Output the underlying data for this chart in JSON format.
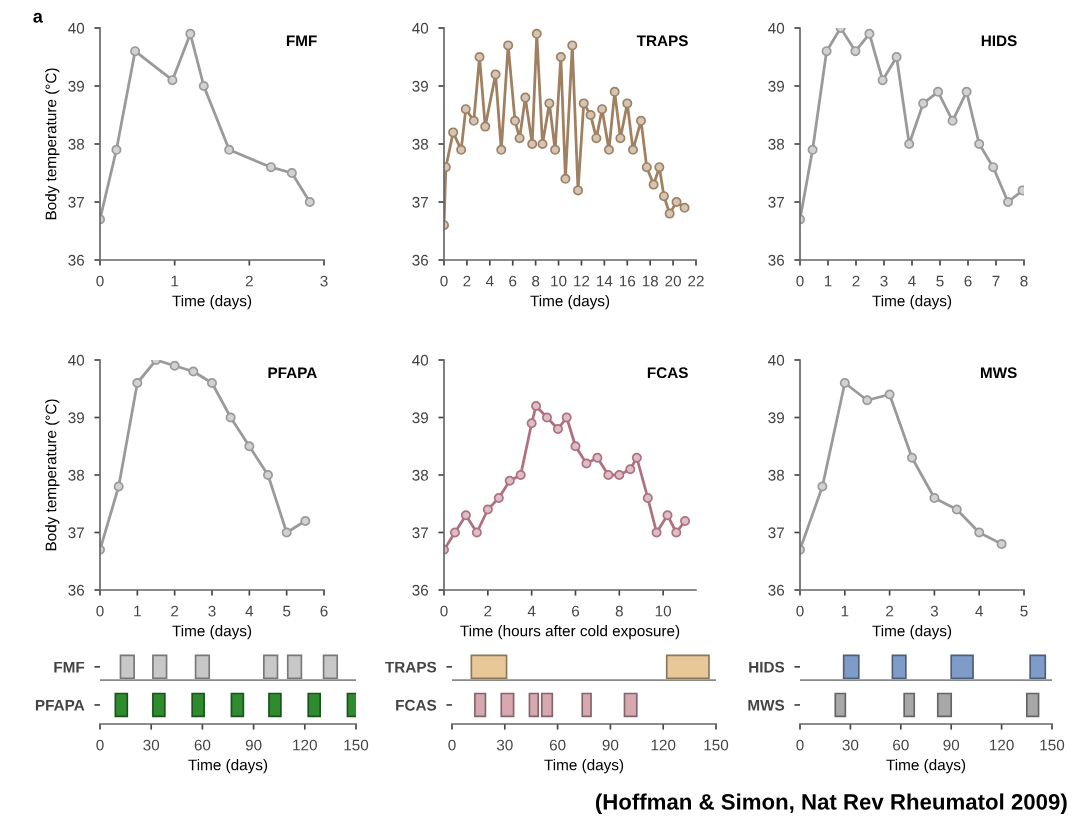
{
  "chart_data": [
    {
      "type": "line",
      "title": "FMF",
      "ylabel": "Body temperature (°C)",
      "xlabel": "Time (days)",
      "annotations": [
        "a"
      ],
      "marker": "circle",
      "line_style": "solid",
      "xlim": [
        0,
        3
      ],
      "xticks": [
        0,
        1,
        2,
        3
      ],
      "ylim": [
        36,
        40
      ],
      "yticks": [
        36,
        37,
        38,
        39,
        40
      ],
      "series": [
        {
          "color": "#9a9a9a",
          "x": [
            0,
            0.22,
            0.47,
            0.97,
            1.21,
            1.39,
            1.73,
            2.29,
            2.57,
            2.81
          ],
          "values": [
            36.7,
            37.9,
            39.6,
            39.1,
            39.9,
            39.0,
            37.9,
            37.6,
            37.5,
            37.0
          ]
        }
      ]
    },
    {
      "type": "line",
      "title": "TRAPS",
      "xlabel": "Time (days)",
      "marker": "circle",
      "line_style": "solid",
      "xlim": [
        0,
        22
      ],
      "xticks": [
        0,
        2,
        4,
        6,
        8,
        10,
        12,
        14,
        16,
        18,
        20,
        22
      ],
      "ylim": [
        36,
        40
      ],
      "yticks": [
        36,
        37,
        38,
        39,
        40
      ],
      "series": [
        {
          "color": "#a08060",
          "x": [
            0,
            0.16,
            0.8,
            1.5,
            1.9,
            2.6,
            3.1,
            3.6,
            4.5,
            5.0,
            5.6,
            6.2,
            6.6,
            7.1,
            7.7,
            8.1,
            8.6,
            9.2,
            9.7,
            10.2,
            10.6,
            11.2,
            11.7,
            12.2,
            12.8,
            13.3,
            13.8,
            14.4,
            14.9,
            15.4,
            16.0,
            16.5,
            17.2,
            17.7,
            18.3,
            18.8,
            19.2,
            19.7,
            20.3,
            21.0
          ],
          "values": [
            36.6,
            37.6,
            38.2,
            37.9,
            38.6,
            38.4,
            39.5,
            38.3,
            39.2,
            37.9,
            39.7,
            38.4,
            38.1,
            38.8,
            38.0,
            39.9,
            38.0,
            38.7,
            37.9,
            39.5,
            37.4,
            39.7,
            37.2,
            38.7,
            38.5,
            38.1,
            38.6,
            37.9,
            38.9,
            38.1,
            38.7,
            37.9,
            38.4,
            37.6,
            37.3,
            37.6,
            37.1,
            36.8,
            37.0,
            36.9
          ]
        }
      ]
    },
    {
      "type": "line",
      "title": "HIDS",
      "xlabel": "Time (days)",
      "marker": "circle",
      "line_style": "solid",
      "xlim": [
        0,
        8
      ],
      "xticks": [
        0,
        1,
        2,
        3,
        4,
        5,
        6,
        7,
        8
      ],
      "ylim": [
        36,
        40
      ],
      "yticks": [
        36,
        37,
        38,
        39,
        40
      ],
      "series": [
        {
          "color": "#9a9a9a",
          "x": [
            0,
            0.45,
            0.95,
            1.45,
            1.98,
            2.48,
            2.95,
            3.45,
            3.9,
            4.4,
            4.93,
            5.45,
            5.95,
            6.4,
            6.9,
            7.43,
            7.95
          ],
          "values": [
            36.7,
            37.9,
            39.6,
            40.0,
            39.6,
            39.9,
            39.1,
            39.5,
            38.0,
            38.7,
            38.9,
            38.4,
            38.9,
            38.0,
            37.6,
            37.0,
            37.2
          ]
        }
      ]
    },
    {
      "type": "line",
      "title": "PFAPA",
      "ylabel": "Body temperature (°C)",
      "xlabel": "Time (days)",
      "marker": "circle",
      "line_style": "solid",
      "xlim": [
        0,
        6
      ],
      "xticks": [
        0,
        1,
        2,
        3,
        4,
        5,
        6
      ],
      "ylim": [
        36,
        40
      ],
      "yticks": [
        36,
        37,
        38,
        39,
        40
      ],
      "series": [
        {
          "color": "#9a9a9a",
          "x": [
            0,
            0.5,
            1,
            1.5,
            2,
            2.5,
            3,
            3.5,
            4,
            4.5,
            5,
            5.5
          ],
          "values": [
            36.7,
            37.8,
            39.6,
            40.0,
            39.9,
            39.8,
            39.6,
            39.0,
            38.5,
            38.0,
            37.0,
            37.2
          ]
        }
      ]
    },
    {
      "type": "line",
      "title": "FCAS",
      "xlabel": "Time (hours after cold exposure)",
      "marker": "circle",
      "line_style": "solid",
      "xlim": [
        0,
        11.5
      ],
      "xticks": [
        0,
        2,
        4,
        6,
        8,
        10
      ],
      "ylim": [
        36,
        40
      ],
      "yticks": [
        36,
        37,
        38,
        39,
        40
      ],
      "series": [
        {
          "color": "#b07080",
          "x": [
            0,
            0.5,
            1,
            1.5,
            2,
            2.5,
            3,
            3.5,
            4,
            4.2,
            4.7,
            5.2,
            5.6,
            6,
            6.5,
            7,
            7.5,
            8,
            8.5,
            8.8,
            9.3,
            9.7,
            10.2,
            10.6,
            11
          ],
          "values": [
            36.7,
            37.0,
            37.3,
            37.0,
            37.4,
            37.6,
            37.9,
            38.0,
            38.9,
            39.2,
            39.0,
            38.8,
            39.0,
            38.5,
            38.2,
            38.3,
            38.0,
            38.0,
            38.1,
            38.3,
            37.6,
            37.0,
            37.3,
            37.0,
            37.2
          ]
        }
      ]
    },
    {
      "type": "line",
      "title": "MWS",
      "xlabel": "Time (days)",
      "marker": "circle",
      "line_style": "solid",
      "xlim": [
        0,
        5
      ],
      "xticks": [
        0,
        1,
        2,
        3,
        4,
        5
      ],
      "ylim": [
        36,
        40
      ],
      "yticks": [
        36,
        37,
        38,
        39,
        40
      ],
      "series": [
        {
          "color": "#9a9a9a",
          "x": [
            0,
            0.5,
            1,
            1.5,
            2,
            2.5,
            3,
            3.5,
            4,
            4.5
          ],
          "values": [
            36.7,
            37.8,
            39.6,
            39.3,
            39.4,
            38.3,
            37.6,
            37.4,
            37.0,
            36.8
          ]
        }
      ]
    },
    {
      "type": "bar",
      "orientation": "horizontal",
      "xlabel": "Time (days)",
      "categories": [
        "FMF",
        "PFAPA"
      ],
      "xlim": [
        0,
        150
      ],
      "xticks": [
        0,
        30,
        60,
        90,
        120,
        150
      ],
      "series": [
        {
          "base": [
            12,
            9
          ],
          "values": [
            8,
            7
          ],
          "colors": [
            "#c8c8c8",
            "#2e8b2e"
          ]
        },
        {
          "base": [
            31,
            31
          ],
          "values": [
            8,
            7
          ],
          "colors": [
            "#c8c8c8",
            "#2e8b2e"
          ]
        },
        {
          "base": [
            56,
            54
          ],
          "values": [
            8,
            7
          ],
          "colors": [
            "#c8c8c8",
            "#2e8b2e"
          ]
        },
        {
          "base": [
            96,
            77
          ],
          "values": [
            8,
            7
          ],
          "colors": [
            "#c8c8c8",
            "#2e8b2e"
          ]
        },
        {
          "base": [
            110,
            99
          ],
          "values": [
            8,
            7
          ],
          "colors": [
            "#c8c8c8",
            "#2e8b2e"
          ]
        },
        {
          "base": [
            131,
            122
          ],
          "values": [
            8,
            7
          ],
          "colors": [
            "#c8c8c8",
            "#2e8b2e"
          ]
        },
        {
          "base": [
            null,
            145
          ],
          "values": [
            null,
            7
          ],
          "colors": [
            "#c8c8c8",
            "#2e8b2e"
          ]
        }
      ]
    },
    {
      "type": "bar",
      "orientation": "horizontal",
      "xlabel": "Time (days)",
      "categories": [
        "TRAPS",
        "FCAS"
      ],
      "xlim": [
        0,
        150
      ],
      "xticks": [
        0,
        30,
        60,
        90,
        120,
        150
      ],
      "series": [
        {
          "base": [
            11,
            13
          ],
          "values": [
            20,
            6
          ],
          "colors": [
            "#e8c898",
            "#d8a8b0"
          ]
        },
        {
          "base": [
            122,
            28
          ],
          "values": [
            24,
            7
          ],
          "colors": [
            "#e8c898",
            "#d8a8b0"
          ]
        },
        {
          "base": [
            null,
            44
          ],
          "values": [
            null,
            5
          ],
          "colors": [
            "#e8c898",
            "#d8a8b0"
          ]
        },
        {
          "base": [
            null,
            51
          ],
          "values": [
            null,
            6
          ],
          "colors": [
            "#e8c898",
            "#d8a8b0"
          ]
        },
        {
          "base": [
            null,
            74
          ],
          "values": [
            null,
            5
          ],
          "colors": [
            "#e8c898",
            "#d8a8b0"
          ]
        },
        {
          "base": [
            null,
            98
          ],
          "values": [
            null,
            7
          ],
          "colors": [
            "#e8c898",
            "#d8a8b0"
          ]
        }
      ]
    },
    {
      "type": "bar",
      "orientation": "horizontal",
      "xlabel": "Time (days)",
      "categories": [
        "HIDS",
        "MWS"
      ],
      "xlim": [
        0,
        150
      ],
      "xticks": [
        0,
        30,
        60,
        90,
        120,
        150
      ],
      "annotations": [
        "(Hoffman & Simon, Nat Rev Rheumatol 2009)"
      ],
      "series": [
        {
          "base": [
            26,
            21
          ],
          "values": [
            9,
            6
          ],
          "colors": [
            "#7f9cc8",
            "#a8a8a8"
          ]
        },
        {
          "base": [
            55,
            62
          ],
          "values": [
            8,
            6
          ],
          "colors": [
            "#7f9cc8",
            "#a8a8a8"
          ]
        },
        {
          "base": [
            90,
            82
          ],
          "values": [
            13,
            8
          ],
          "colors": [
            "#7f9cc8",
            "#a8a8a8"
          ]
        },
        {
          "base": [
            137,
            135
          ],
          "values": [
            9,
            7
          ],
          "colors": [
            "#7f9cc8",
            "#a8a8a8"
          ]
        }
      ]
    }
  ]
}
